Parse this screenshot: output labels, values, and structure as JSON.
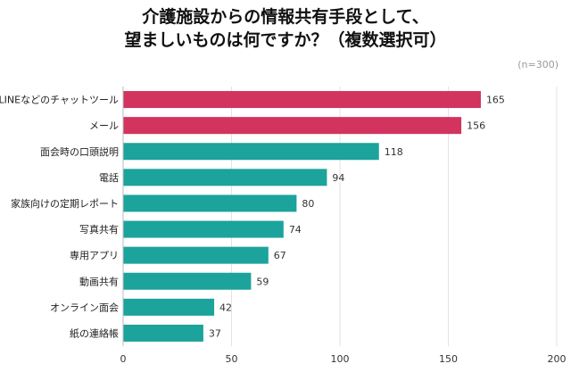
{
  "chart_data": {
    "type": "bar",
    "orientation": "horizontal",
    "title_line1": "介護施設からの情報共有手段として、",
    "title_line2": "望ましいものは何ですか？（複数選択可）",
    "note": "(n=300)",
    "categories": [
      "LINEなどのチャットツール",
      "メール",
      "面会時の口頭説明",
      "電話",
      "家族向けの定期レポート",
      "写真共有",
      "専用アプリ",
      "動画共有",
      "オンライン面会",
      "紙の連絡帳"
    ],
    "values": [
      165,
      156,
      118,
      94,
      80,
      74,
      67,
      59,
      42,
      37
    ],
    "highlight_count": 2,
    "colors": {
      "highlight": "#d2335f",
      "normal": "#1ba39c"
    },
    "xlim": [
      0,
      200
    ],
    "xticks": [
      0,
      50,
      100,
      150,
      200
    ],
    "grid": true
  }
}
